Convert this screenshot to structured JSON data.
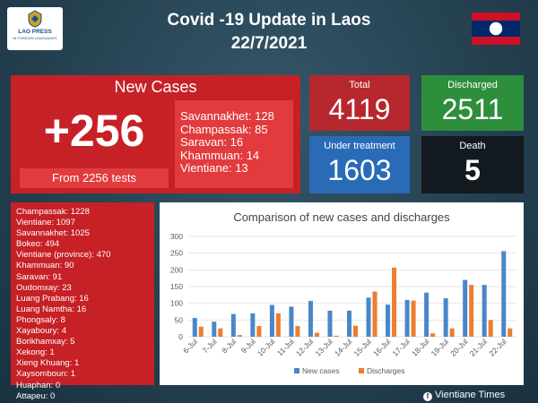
{
  "logo": {
    "name": "LAO PRESS",
    "sub": "IN FOREIGN LANGUAGES"
  },
  "header": {
    "title": "Covid -19 Update in Laos",
    "date": "22/7/2021"
  },
  "new_cases": {
    "title": "New Cases",
    "count": "+256",
    "tests": "From 2256 tests",
    "provinces": [
      "Savannakhet: 128",
      "Champassak: 85",
      "Saravan: 16",
      "Khammuan: 14",
      "Vientiane: 13"
    ]
  },
  "stats": {
    "total": {
      "label": "Total",
      "value": "4119"
    },
    "discharged": {
      "label": "Discharged",
      "value": "2511"
    },
    "under_treatment": {
      "label": "Under treatment",
      "value": "1603"
    },
    "death": {
      "label": "Death",
      "value": "5"
    }
  },
  "province_totals": [
    "Champassak: 1228",
    "Vientiane: 1097",
    "Savannakhet: 1025",
    "Bokeo: 494",
    "Vientiane (province): 470",
    "Khammuan: 90",
    "Saravan: 91",
    "Oudomxay: 23",
    "Luang Prabang: 16",
    "Luang Namtha: 16",
    "Phongsaly: 8",
    "Xayaboury: 4",
    "Borikhamxay: 5",
    "Xekong: 1",
    "Xieng Khuang: 1",
    "Xaysomboun: 1",
    "Huaphan: 0",
    "Attapeu: 0"
  ],
  "chart_data": {
    "type": "bar",
    "title": "Comparison of new cases and discharges",
    "categories": [
      "6-Jul",
      "7-Jul",
      "8-Jul",
      "9-Jul",
      "10-Jul",
      "11-Jul",
      "12-Jul",
      "13-Jul",
      "14-Jul",
      "15-Jul",
      "16-Jul",
      "17-Jul",
      "18-Jul",
      "19-Jul",
      "20-Jul",
      "21-Jul",
      "22-Jul"
    ],
    "series": [
      {
        "name": "New cases",
        "color": "#4a86c8",
        "values": [
          56,
          45,
          68,
          70,
          95,
          90,
          107,
          78,
          78,
          117,
          96,
          110,
          132,
          115,
          170,
          155,
          256
        ]
      },
      {
        "name": "Discharges",
        "color": "#ed7d31",
        "values": [
          30,
          25,
          5,
          32,
          70,
          32,
          12,
          3,
          33,
          135,
          207,
          108,
          10,
          25,
          155,
          50,
          25
        ]
      }
    ],
    "yticks": [
      0,
      50,
      100,
      150,
      200,
      250,
      300
    ],
    "ylim": [
      0,
      300
    ],
    "legend": "bottom"
  },
  "footer": {
    "source": "Vientiane Times",
    "icon": "facebook-icon"
  }
}
